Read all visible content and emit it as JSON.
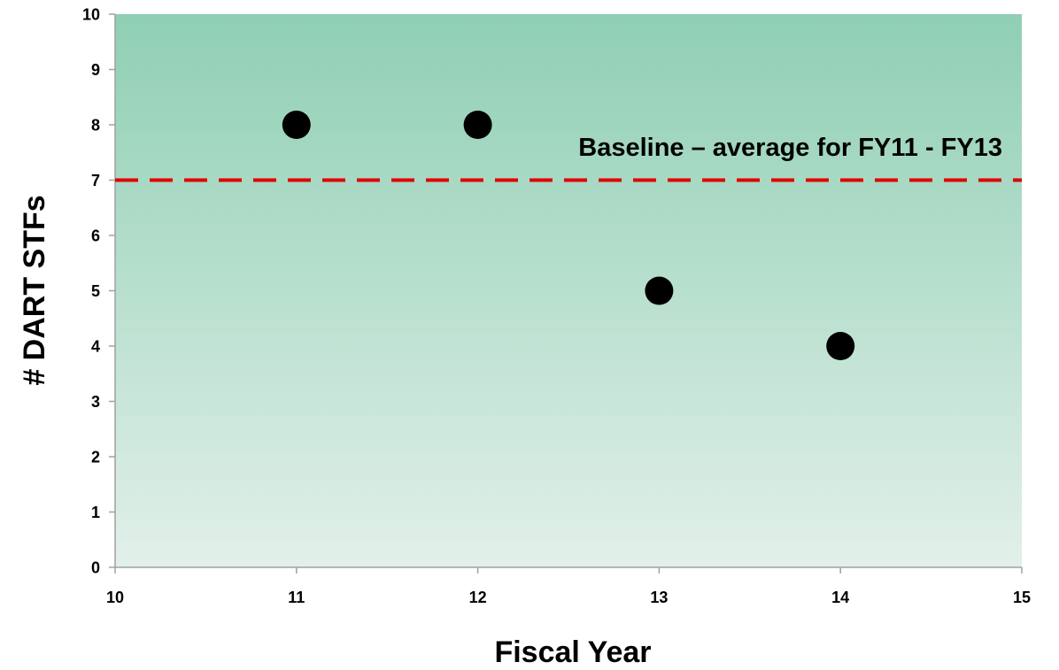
{
  "chart_data": {
    "type": "scatter",
    "xlabel": "Fiscal Year",
    "ylabel": "# DART STFs",
    "xlim": [
      10,
      15
    ],
    "ylim": [
      0,
      10
    ],
    "x_ticks": [
      "10",
      "11",
      "12",
      "13",
      "14",
      "15"
    ],
    "y_ticks": [
      "0",
      "1",
      "2",
      "3",
      "4",
      "5",
      "6",
      "7",
      "8",
      "9",
      "10"
    ],
    "points": [
      {
        "x": 11,
        "y": 8
      },
      {
        "x": 12,
        "y": 8
      },
      {
        "x": 13,
        "y": 5
      },
      {
        "x": 14,
        "y": 4
      }
    ],
    "reference_line": {
      "y": 7,
      "style": "dashed",
      "color": "#e00000",
      "label": "Baseline – average for FY11 - FY13"
    },
    "marker_color": "#000000",
    "background": {
      "top": "#8fcfb3",
      "bottom": "#e2f0ea"
    },
    "grid": false,
    "legend": "none"
  }
}
